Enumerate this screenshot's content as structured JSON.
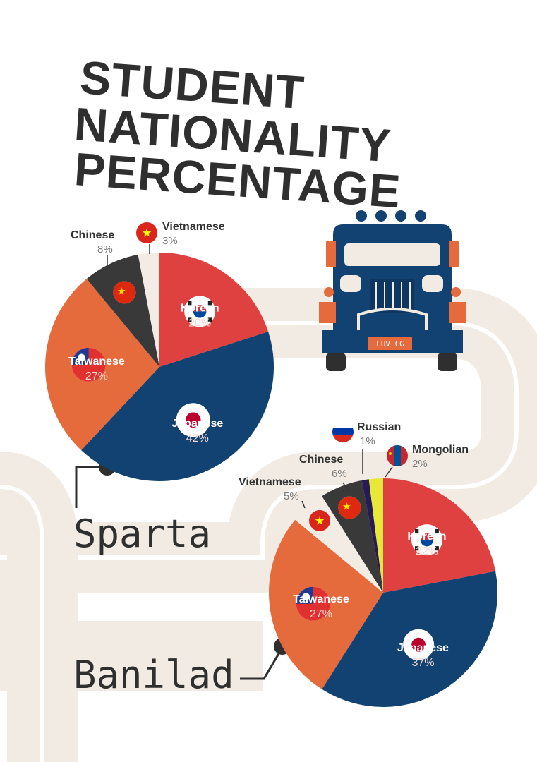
{
  "title": [
    "STUDENT",
    "NATIONALITY",
    "PERCENTAGE"
  ],
  "truck": {
    "plate": "LUV CG"
  },
  "colors": {
    "korean": "#df4141",
    "japanese": "#124271",
    "taiwanese": "#e56a3c",
    "chinese": "#393939",
    "vietnamese": "#f2ece4",
    "russian": "#281b55",
    "mongolian": "#e9e839",
    "road": "#f1ebe3",
    "text": "#2f2f2f"
  },
  "chart_data": [
    {
      "type": "pie",
      "name": "Sparta",
      "slices": [
        {
          "label": "Korean",
          "value": 20,
          "value_label": "20%",
          "flag": "korea-flag-icon"
        },
        {
          "label": "Japanese",
          "value": 42,
          "value_label": "42%",
          "flag": "japan-flag-icon"
        },
        {
          "label": "Taiwanese",
          "value": 27,
          "value_label": "27%",
          "flag": "taiwan-flag-icon"
        },
        {
          "label": "Chinese",
          "value": 8,
          "value_label": "8%",
          "flag": "china-flag-icon"
        },
        {
          "label": "Vietnamese",
          "value": 3,
          "value_label": "3%",
          "flag": "vietnam-flag-icon"
        }
      ]
    },
    {
      "type": "pie",
      "name": "Banilad",
      "slices": [
        {
          "label": "Korean",
          "value": 22,
          "value_label": "22%",
          "flag": "korea-flag-icon"
        },
        {
          "label": "Japanese",
          "value": 37,
          "value_label": "37%",
          "flag": "japan-flag-icon"
        },
        {
          "label": "Taiwanese",
          "value": 27,
          "value_label": "27%",
          "flag": "taiwan-flag-icon"
        },
        {
          "label": "Vietnamese",
          "value": 5,
          "value_label": "5%",
          "flag": "vietnam-flag-icon"
        },
        {
          "label": "Chinese",
          "value": 6,
          "value_label": "6%",
          "flag": "china-flag-icon"
        },
        {
          "label": "Russian",
          "value": 1,
          "value_label": "1%",
          "flag": "russia-flag-icon"
        },
        {
          "label": "Mongolian",
          "value": 2,
          "value_label": "2%",
          "flag": "mongolia-flag-icon"
        }
      ]
    }
  ]
}
